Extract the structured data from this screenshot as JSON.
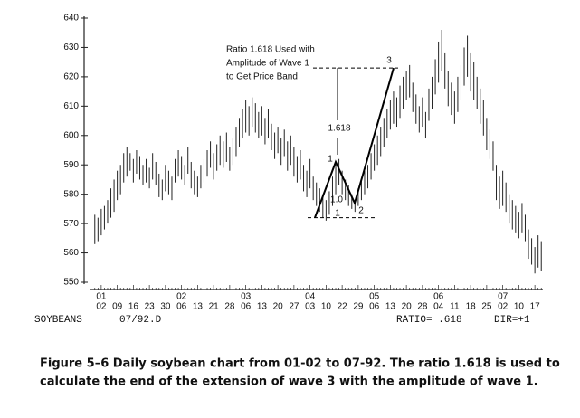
{
  "chart_data": {
    "type": "hl-bars",
    "color": "#222",
    "ylim": [
      550,
      640
    ],
    "yticks": [
      550,
      560,
      570,
      580,
      590,
      600,
      610,
      620,
      630,
      640
    ],
    "categories": [
      null,
      null,
      "02",
      null,
      null,
      null,
      null,
      "09",
      null,
      null,
      null,
      null,
      "16",
      null,
      null,
      null,
      null,
      "23",
      null,
      null,
      null,
      null,
      "30",
      null,
      null,
      null,
      null,
      "06",
      null,
      null,
      null,
      null,
      "13",
      null,
      null,
      null,
      null,
      "21",
      null,
      null,
      null,
      null,
      "28",
      null,
      null,
      null,
      null,
      "06",
      null,
      null,
      null,
      null,
      "13",
      null,
      null,
      null,
      null,
      "20",
      null,
      null,
      null,
      null,
      "27",
      null,
      null,
      null,
      null,
      "03",
      null,
      null,
      null,
      null,
      "10",
      null,
      null,
      null,
      null,
      "22",
      null,
      null,
      null,
      null,
      "29",
      null,
      null,
      null,
      null,
      "06",
      null,
      null,
      null,
      null,
      "13",
      null,
      null,
      null,
      null,
      "20",
      null,
      null,
      null,
      null,
      "28",
      null,
      null,
      null,
      null,
      "04",
      null,
      null,
      null,
      null,
      "11",
      null,
      null,
      null,
      null,
      "18",
      null,
      null,
      null,
      null,
      "25",
      null,
      null,
      null,
      null,
      "02",
      null,
      null,
      null,
      null,
      "10",
      null,
      null,
      null,
      null,
      "17",
      null,
      null
    ],
    "months": [
      null,
      null,
      "01",
      null,
      null,
      null,
      null,
      null,
      null,
      null,
      null,
      null,
      null,
      null,
      null,
      null,
      null,
      null,
      null,
      null,
      null,
      null,
      null,
      null,
      null,
      null,
      null,
      "02",
      null,
      null,
      null,
      null,
      null,
      null,
      null,
      null,
      null,
      null,
      null,
      null,
      null,
      null,
      null,
      null,
      null,
      null,
      null,
      "03",
      null,
      null,
      null,
      null,
      null,
      null,
      null,
      null,
      null,
      null,
      null,
      null,
      null,
      null,
      null,
      null,
      null,
      null,
      null,
      "04",
      null,
      null,
      null,
      null,
      null,
      null,
      null,
      null,
      null,
      null,
      null,
      null,
      null,
      null,
      null,
      null,
      null,
      null,
      null,
      "05",
      null,
      null,
      null,
      null,
      null,
      null,
      null,
      null,
      null,
      null,
      null,
      null,
      null,
      null,
      null,
      null,
      null,
      null,
      null,
      "06",
      null,
      null,
      null,
      null,
      null,
      null,
      null,
      null,
      null,
      null,
      null,
      null,
      null,
      null,
      null,
      null,
      null,
      null,
      null,
      "07",
      null,
      null,
      null,
      null,
      null,
      null,
      null,
      null,
      null,
      null,
      null,
      null
    ],
    "high": [
      573,
      572,
      575,
      576,
      578,
      582,
      585,
      588,
      590,
      594,
      596,
      594,
      592,
      595,
      593,
      590,
      592,
      589,
      594,
      591,
      587,
      585,
      590,
      588,
      586,
      592,
      595,
      593,
      590,
      596,
      591,
      588,
      586,
      590,
      592,
      595,
      598,
      594,
      597,
      600,
      598,
      601,
      596,
      599,
      603,
      606,
      609,
      612,
      610,
      613,
      611,
      608,
      610,
      606,
      609,
      604,
      601,
      603,
      599,
      602,
      598,
      600,
      596,
      593,
      595,
      590,
      588,
      592,
      586,
      584,
      582,
      580,
      578,
      581,
      586,
      590,
      592,
      588,
      585,
      583,
      580,
      578,
      582,
      585,
      588,
      590,
      594,
      597,
      600,
      603,
      606,
      609,
      612,
      615,
      613,
      617,
      620,
      622,
      624,
      618,
      614,
      610,
      613,
      608,
      616,
      620,
      626,
      632,
      636,
      628,
      622,
      618,
      615,
      620,
      624,
      630,
      634,
      628,
      625,
      620,
      616,
      612,
      606,
      602,
      598,
      590,
      586,
      588,
      584,
      580,
      578,
      576,
      574,
      577,
      573,
      568,
      565,
      562,
      566,
      564
    ],
    "low": [
      563,
      564,
      566,
      568,
      570,
      572,
      574,
      578,
      580,
      584,
      586,
      588,
      584,
      587,
      585,
      583,
      584,
      582,
      585,
      583,
      579,
      578,
      581,
      580,
      578,
      584,
      586,
      585,
      583,
      587,
      582,
      580,
      579,
      582,
      584,
      586,
      589,
      585,
      588,
      590,
      589,
      591,
      588,
      590,
      593,
      596,
      599,
      601,
      600,
      603,
      601,
      599,
      600,
      597,
      599,
      595,
      592,
      594,
      590,
      593,
      588,
      590,
      586,
      584,
      585,
      581,
      579,
      582,
      578,
      576,
      574,
      572,
      571,
      573,
      576,
      580,
      583,
      580,
      578,
      576,
      575,
      574,
      576,
      578,
      580,
      582,
      585,
      588,
      590,
      593,
      596,
      599,
      602,
      604,
      603,
      606,
      609,
      612,
      613,
      608,
      604,
      601,
      603,
      599,
      605,
      609,
      614,
      618,
      622,
      616,
      610,
      607,
      604,
      608,
      612,
      617,
      620,
      615,
      612,
      609,
      604,
      600,
      595,
      592,
      588,
      578,
      575,
      576,
      574,
      570,
      568,
      567,
      565,
      567,
      564,
      558,
      556,
      553,
      555,
      554
    ],
    "wave": [
      572,
      591,
      577,
      623
    ],
    "annotation": [
      "Ratio 1.618 Used with",
      "Amplitude of Wave 1",
      "to Get Price Band"
    ],
    "ratio_label": "1.618",
    "wave_labels": [
      "1",
      "2",
      "3"
    ],
    "unit_label": "1.0",
    "base_label": "1",
    "footer": [
      "SOYBEANS",
      "07/92.D",
      "RATIO= .618",
      "DIR=+1"
    ],
    "caption": [
      "Figure 5–6    Daily soybean chart from 01-02 to 07-92. The ratio 1.618 is used to",
      "calculate the end of the extension of wave 3 with the amplitude of wave 1."
    ]
  }
}
